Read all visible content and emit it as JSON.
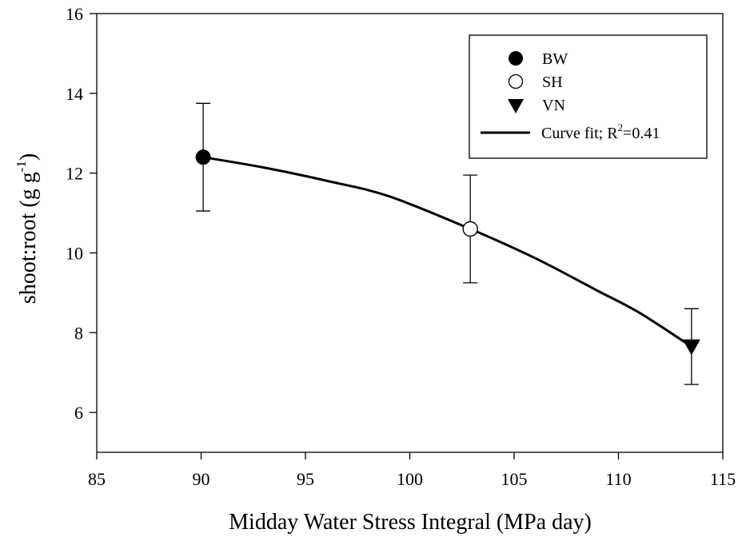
{
  "chart_data": {
    "type": "scatter",
    "xlabel": "Midday Water Stress Integral (MPa day)",
    "ylabel": "shoot:root (g g",
    "ylabel_sup": "-1",
    "ylabel_tail": ")",
    "xlim": [
      85,
      115
    ],
    "ylim": [
      5,
      16
    ],
    "x_ticks": [
      85,
      90,
      95,
      100,
      105,
      110,
      115
    ],
    "y_ticks": [
      6,
      8,
      10,
      12,
      14,
      16
    ],
    "grid": false,
    "legend_position": "top-right",
    "series": [
      {
        "name": "BW",
        "marker": "filled-circle",
        "x": 90.1,
        "y": 12.4,
        "err_low": 11.05,
        "err_high": 13.75
      },
      {
        "name": "SH",
        "marker": "open-circle",
        "x": 102.9,
        "y": 10.6,
        "err_low": 9.25,
        "err_high": 11.95
      },
      {
        "name": "VN",
        "marker": "filled-triangle-down",
        "x": 113.5,
        "y": 7.65,
        "err_low": 6.7,
        "err_high": 8.6
      }
    ],
    "curve_fit": {
      "label": "Curve fit; R",
      "label_sup": "2",
      "label_tail": "=0.41",
      "points": [
        [
          90.1,
          12.4
        ],
        [
          93,
          12.14
        ],
        [
          96,
          11.81
        ],
        [
          99,
          11.42
        ],
        [
          102.9,
          10.6
        ],
        [
          106,
          9.87
        ],
        [
          109,
          9.05
        ],
        [
          111,
          8.5
        ],
        [
          113.5,
          7.65
        ]
      ]
    },
    "colors": {
      "ink": "#000000",
      "open_marker_fill": "#ffffff"
    }
  }
}
